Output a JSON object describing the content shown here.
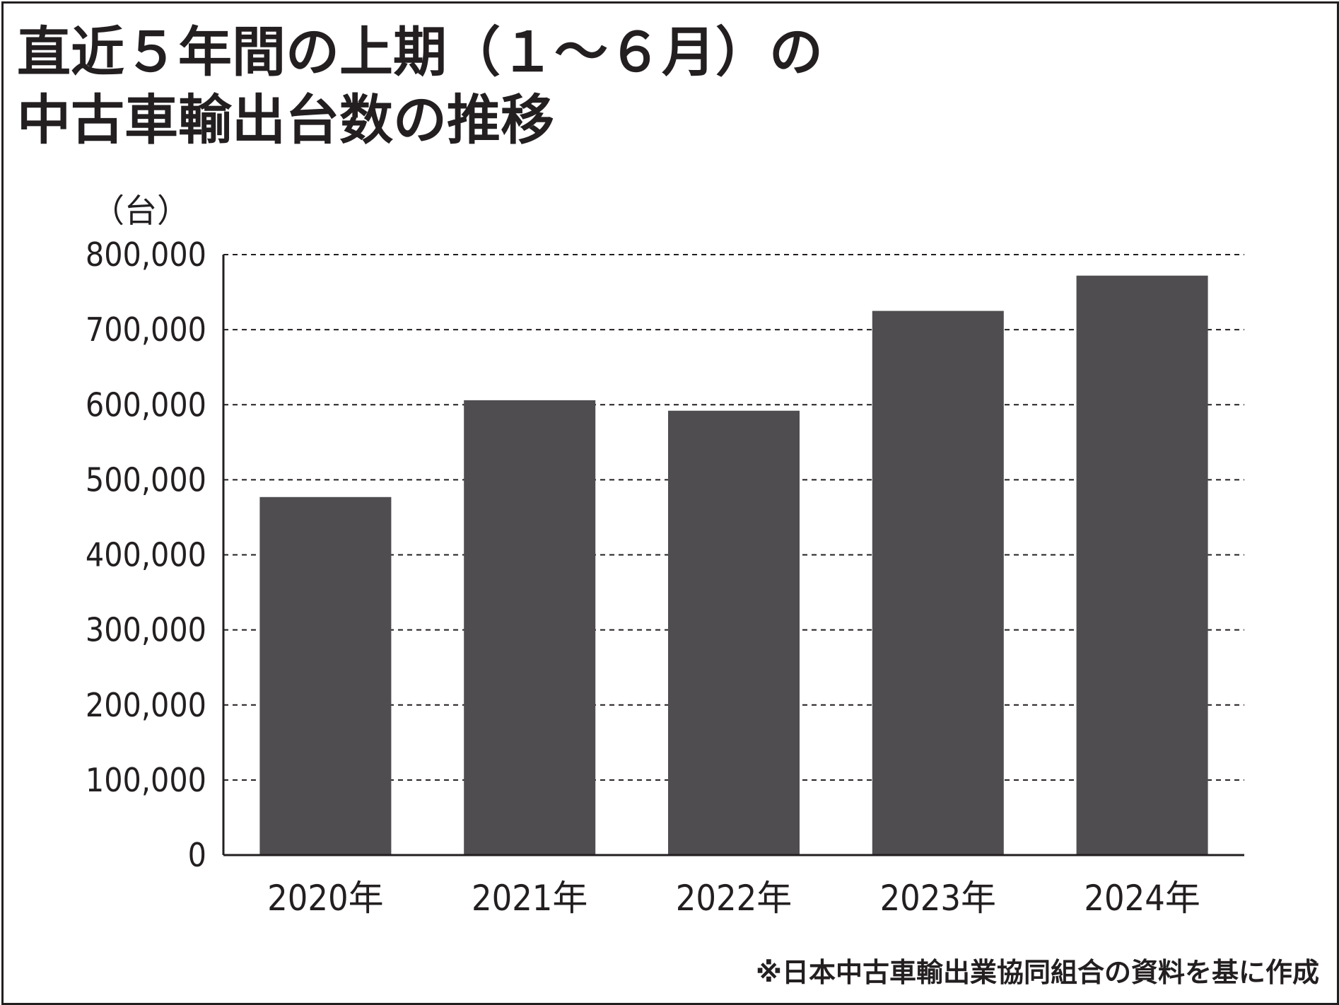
{
  "title_lines": [
    "直近５年間の上期（１～６月）の",
    "中古車輸出台数の推移"
  ],
  "unit_label": "（台）",
  "source_note": "※日本中古車輸出業協同組合の資料を基に作成",
  "colors": {
    "bar": "#4f4d50",
    "text": "#231f20",
    "grid": "#231f20"
  },
  "chart_data": {
    "type": "bar",
    "title": "直近５年間の上期（１～６月）の中古車輸出台数の推移",
    "xlabel": "",
    "ylabel": "（台）",
    "categories": [
      "2020年",
      "2021年",
      "2022年",
      "2023年",
      "2024年"
    ],
    "values": [
      477000,
      606000,
      592000,
      725000,
      772000
    ],
    "ylim": [
      0,
      800000
    ],
    "yticks": [
      0,
      100000,
      200000,
      300000,
      400000,
      500000,
      600000,
      700000,
      800000
    ],
    "ytick_labels": [
      "0",
      "100,000",
      "200,000",
      "300,000",
      "400,000",
      "500,000",
      "600,000",
      "700,000",
      "800,000"
    ],
    "grid": "horizontal dashed",
    "legend": "none"
  }
}
